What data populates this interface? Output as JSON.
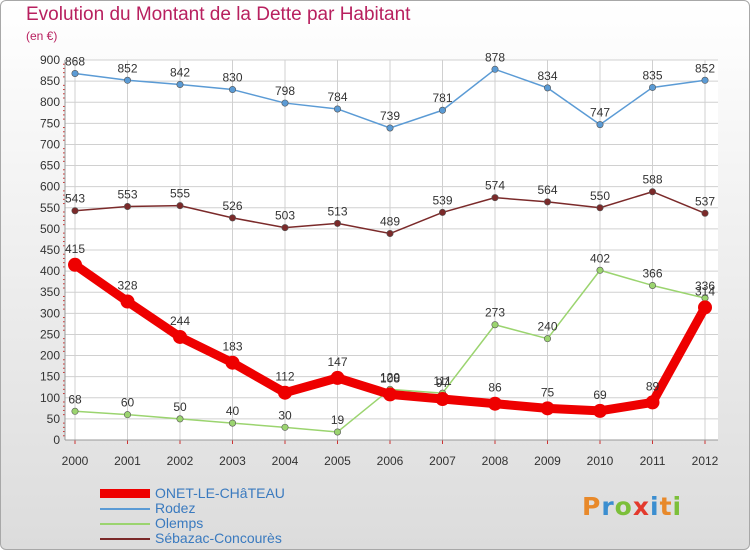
{
  "header": {
    "title": "Evolution du Montant de la Dette par Habitant",
    "unit": "(en €)"
  },
  "logo": {
    "text": "Proxiti",
    "letter_colors": [
      "#e8892a",
      "#3b8ed0",
      "#7cbf3a",
      "#e33a2d",
      "#3b8ed0",
      "#e8892a",
      "#7cbf3a"
    ]
  },
  "chart_data": {
    "type": "line",
    "x": [
      "2000",
      "2001",
      "2002",
      "2003",
      "2004",
      "2005",
      "2006",
      "2007",
      "2008",
      "2009",
      "2010",
      "2011",
      "2012"
    ],
    "ylim": [
      0,
      900
    ],
    "yticks": [
      0,
      50,
      100,
      150,
      200,
      250,
      300,
      350,
      400,
      450,
      500,
      550,
      600,
      650,
      700,
      750,
      800,
      850,
      900
    ],
    "grid": true,
    "legend_position": "bottom-left",
    "series": [
      {
        "name": "ONET-LE-CHâTEAU",
        "color": "#ee0000",
        "emphasis": true,
        "x": [
          "2000",
          "2001",
          "2002",
          "2003",
          "2004",
          "2005",
          "2006",
          "2007",
          "2008",
          "2009",
          "2010",
          "2011",
          "2012"
        ],
        "values": [
          415,
          328,
          244,
          183,
          112,
          147,
          108,
          97,
          86,
          75,
          69,
          89,
          314
        ]
      },
      {
        "name": "Rodez",
        "color": "#5b9bd5",
        "emphasis": false,
        "x": [
          "2000",
          "2001",
          "2002",
          "2003",
          "2004",
          "2005",
          "2006",
          "2007",
          "2008",
          "2009",
          "2010",
          "2011",
          "2012"
        ],
        "values": [
          868,
          852,
          842,
          830,
          798,
          784,
          739,
          781,
          878,
          834,
          747,
          835,
          852
        ]
      },
      {
        "name": "Olemps",
        "color": "#9bd46f",
        "emphasis": false,
        "x": [
          "2000",
          "2001",
          "2002",
          "2003",
          "2004",
          "2005",
          "2006",
          "2007",
          "2008",
          "2009",
          "2010",
          "2011",
          "2012"
        ],
        "values": [
          68,
          60,
          50,
          40,
          30,
          19,
          120,
          111,
          273,
          240,
          402,
          366,
          336
        ]
      },
      {
        "name": "Sébazac-Concourès",
        "color": "#7b2a2a",
        "emphasis": false,
        "x": [
          "2000",
          "2001",
          "2002",
          "2003",
          "2004",
          "2005",
          "2006",
          "2007",
          "2008",
          "2009",
          "2010",
          "2011",
          "2012"
        ],
        "values": [
          543,
          553,
          555,
          526,
          503,
          513,
          489,
          539,
          574,
          564,
          550,
          588,
          537
        ]
      }
    ]
  }
}
